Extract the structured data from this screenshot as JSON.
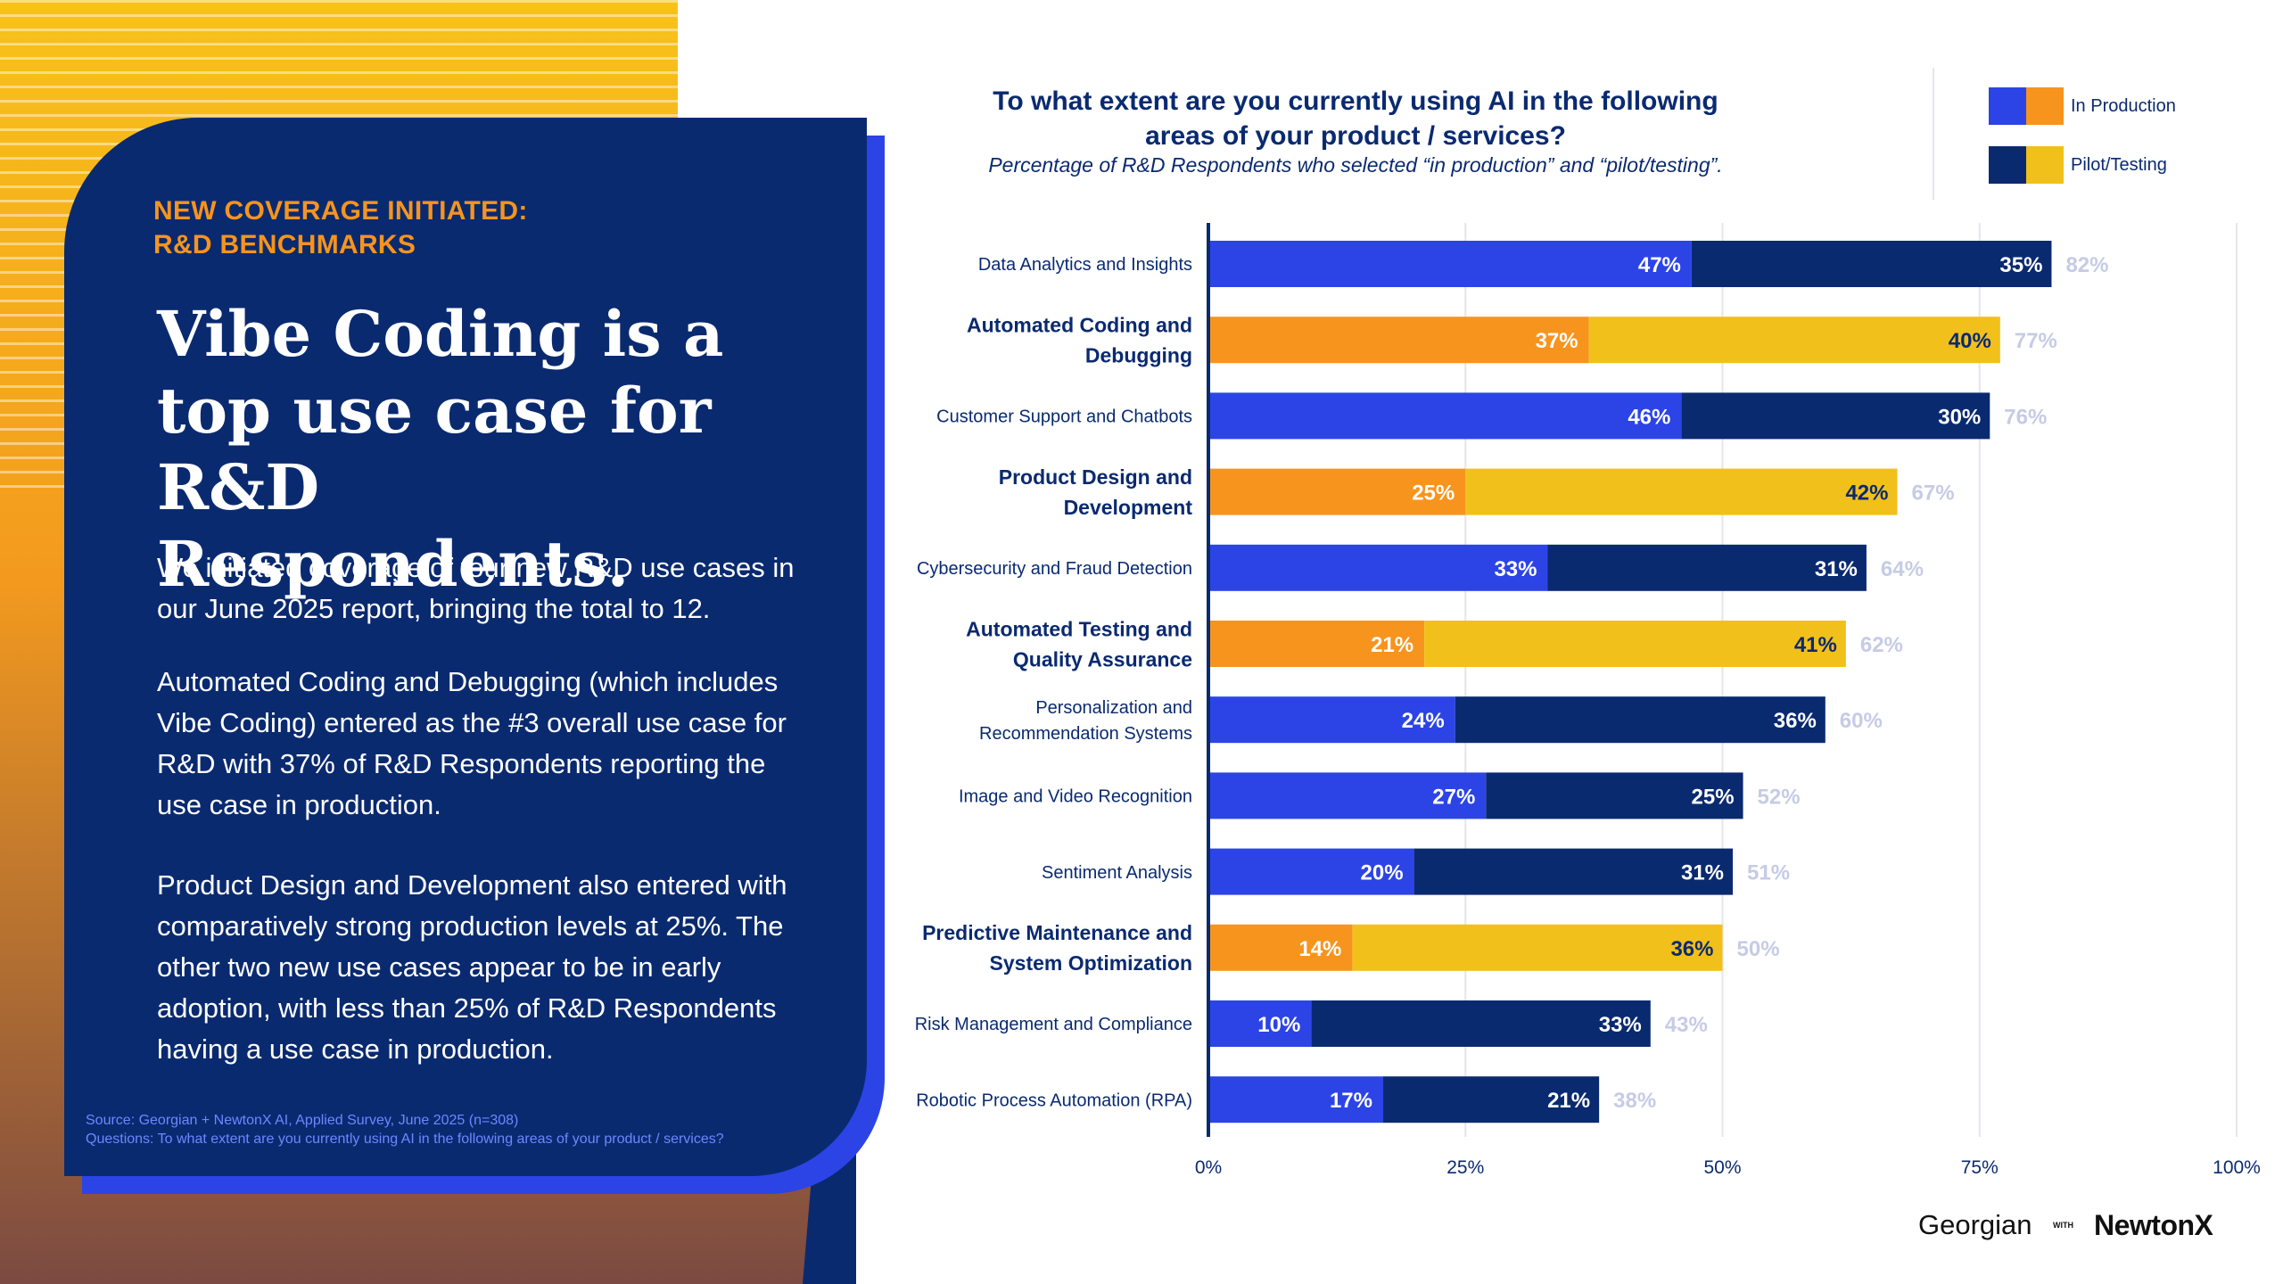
{
  "panel": {
    "kicker_line1": "NEW COVERAGE INITIATED:",
    "kicker_line2": "R&D BENCHMARKS",
    "headline": "Vibe Coding is a top use case for R&D Respondents.",
    "para1": "We initiated coverage of four new R&D use cases in our June 2025 report, bringing the total to 12.",
    "para2": "Automated Coding and Debugging (which includes Vibe Coding) entered as the #3 overall use case for R&D with 37% of R&D Respondents reporting the use case in production.",
    "para3": "Product Design and Development also entered with comparatively strong production levels at 25%. The other two new use cases appear to be in early adoption, with less than 25% of R&D Respondents having a use case in production.",
    "source_line1": "Source: Georgian + NewtonX AI, Applied Survey, June 2025 (n=308)",
    "source_line2": "Questions: To what extent are you currently using AI in the following areas of your product / services?"
  },
  "legend": {
    "production": "In Production",
    "pilot": "Pilot/Testing"
  },
  "colors": {
    "navy": "#0a2a70",
    "blue": "#2c44e6",
    "orange": "#f7941d",
    "yellow": "#f2c01b",
    "total_label": "#c6cbe6",
    "grid": "#e4e6ee"
  },
  "chart_data": {
    "type": "bar",
    "orientation": "horizontal",
    "stacked": true,
    "title": "To what extent are you currently using AI in the following areas of your product / services?",
    "subtitle": "Percentage of R&D Respondents who selected “in production” and “pilot/testing”.",
    "xlim": [
      0,
      100
    ],
    "x_ticks": [
      "0%",
      "25%",
      "50%",
      "75%",
      "100%"
    ],
    "categories": [
      {
        "label": [
          "Data Analytics and Insights"
        ],
        "new": false
      },
      {
        "label": [
          "Automated Coding and",
          "Debugging"
        ],
        "new": true
      },
      {
        "label": [
          "Customer Support and Chatbots"
        ],
        "new": false
      },
      {
        "label": [
          "Product Design and",
          "Development"
        ],
        "new": true
      },
      {
        "label": [
          "Cybersecurity and Fraud Detection"
        ],
        "new": false
      },
      {
        "label": [
          "Automated Testing and",
          "Quality Assurance"
        ],
        "new": true
      },
      {
        "label": [
          "Personalization and",
          "Recommendation Systems"
        ],
        "new": false
      },
      {
        "label": [
          "Image and Video Recognition"
        ],
        "new": false
      },
      {
        "label": [
          "Sentiment Analysis"
        ],
        "new": false
      },
      {
        "label": [
          "Predictive Maintenance and",
          "System Optimization"
        ],
        "new": true
      },
      {
        "label": [
          "Risk Management and Compliance"
        ],
        "new": false
      },
      {
        "label": [
          "Robotic Process Automation (RPA)"
        ],
        "new": false
      }
    ],
    "series": [
      {
        "name": "In Production",
        "values": [
          47,
          37,
          46,
          25,
          33,
          21,
          24,
          27,
          20,
          14,
          10,
          17
        ]
      },
      {
        "name": "Pilot/Testing",
        "values": [
          35,
          40,
          30,
          42,
          31,
          41,
          36,
          25,
          31,
          36,
          33,
          21
        ]
      }
    ],
    "totals": [
      82,
      77,
      76,
      67,
      64,
      62,
      60,
      52,
      51,
      50,
      43,
      38
    ]
  },
  "logos": {
    "georgian": "Georgian",
    "with": "WITH",
    "newtonx": "NewtonX"
  }
}
